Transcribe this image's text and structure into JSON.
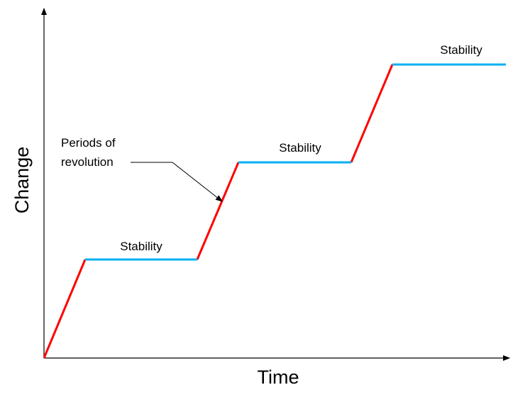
{
  "axes": {
    "x_label": "Time",
    "y_label": "Change"
  },
  "annotation": {
    "line1": "Periods of",
    "line2": "revolution"
  },
  "segments": {
    "stability_label": "Stability"
  },
  "colors": {
    "revolution": "#ff0000",
    "stability": "#00b0f0",
    "axis": "#000000"
  }
}
